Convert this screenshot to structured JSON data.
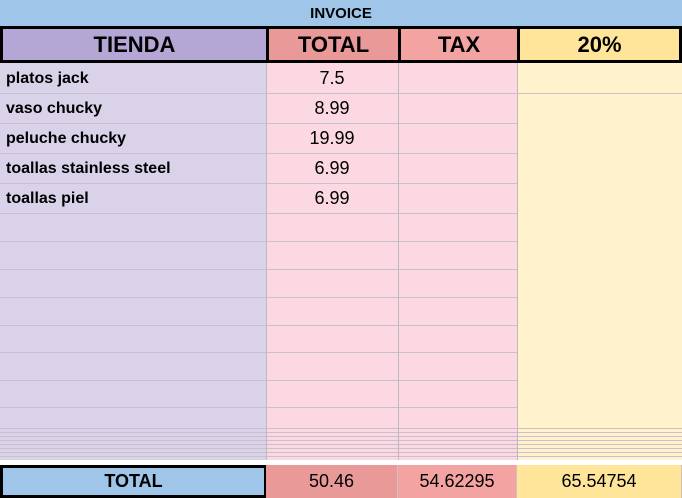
{
  "header": {
    "title": "INVOICE"
  },
  "table": {
    "columns": [
      "TIENDA",
      "TOTAL",
      "TAX",
      "20%"
    ],
    "rows": [
      [
        "platos jack",
        "7.5"
      ],
      [
        "vaso chucky",
        "8.99"
      ],
      [
        "peluche chucky",
        "19.99"
      ],
      [
        "toallas stainless steel",
        "6.99"
      ],
      [
        "toallas piel",
        "6.99"
      ]
    ],
    "totals": [
      "TOTAL",
      "50.46",
      "54.62295",
      "65.54754"
    ]
  }
}
